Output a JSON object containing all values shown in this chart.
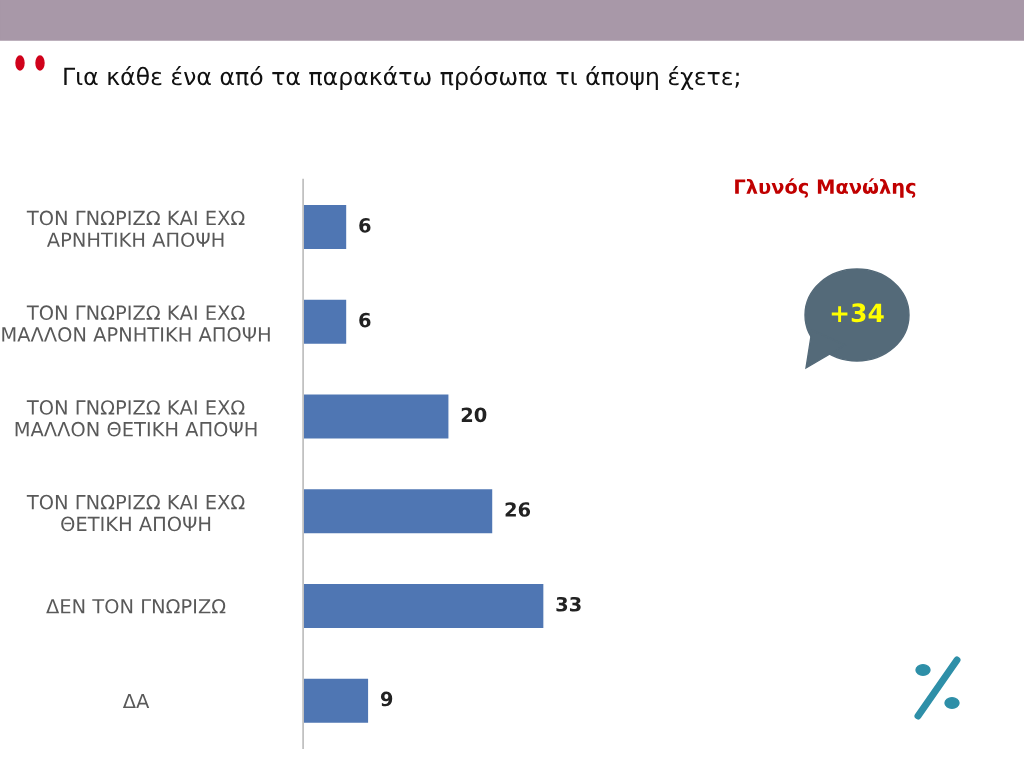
{
  "chart_data": {
    "type": "bar",
    "orientation": "horizontal",
    "title": "Για κάθε ένα από τα παρακάτω πρόσωπα τι άποψη έχετε;",
    "categories": [
      "ΤΟΝ ΓΝΩΡΙΖΩ ΚΑΙ ΕΧΩ\nΑΡΝΗΤΙΚΗ ΑΠΟΨΗ",
      "ΤΟΝ ΓΝΩΡΙΖΩ ΚΑΙ ΕΧΩ\nΜΑΛΛΟΝ ΑΡΝΗΤΙΚΗ ΑΠΟΨΗ",
      "ΤΟΝ ΓΝΩΡΙΖΩ ΚΑΙ ΕΧΩ\nΜΑΛΛΟΝ ΘΕΤΙΚΗ ΑΠΟΨΗ",
      "ΤΟΝ ΓΝΩΡΙΖΩ ΚΑΙ ΕΧΩ\nΘΕΤΙΚΗ ΑΠΟΨΗ",
      "ΔΕΝ ΤΟΝ ΓΝΩΡΙΖΩ",
      "ΔΑ"
    ],
    "values": [
      6,
      6,
      20,
      26,
      33,
      9
    ],
    "color": "#4f76b3",
    "data_labels": true,
    "grid": false,
    "legend": false,
    "annotations": [
      "Γλυνός Μανώλης",
      "+34"
    ]
  }
}
